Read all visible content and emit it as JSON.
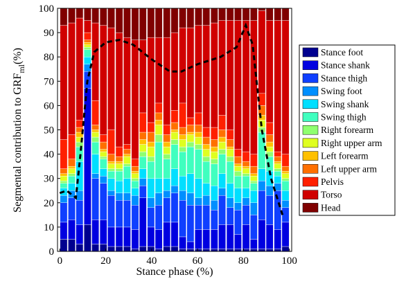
{
  "chart_data": {
    "type": "stacked-bar",
    "xlabel": "Stance phase (%)",
    "ylabel": {
      "text": "Segmental contribution to GRF",
      "subscript": "ml",
      "suffix": "(%)"
    },
    "x": [
      1.7,
      5.2,
      8.6,
      12.1,
      15.5,
      19,
      22.4,
      25.9,
      29.3,
      32.8,
      36.2,
      39.7,
      43.1,
      46.6,
      50,
      53.5,
      56.9,
      60.4,
      63.8,
      67.3,
      70.7,
      74.2,
      77.6,
      81.1,
      84.5,
      88,
      91.4,
      94.9,
      98.3
    ],
    "bar_width": 3.1,
    "xlim": [
      -1,
      101
    ],
    "xticks": [
      0,
      20,
      40,
      60,
      80,
      100
    ],
    "ylim": [
      0,
      100
    ],
    "yticks": [
      0,
      10,
      20,
      30,
      40,
      50,
      60,
      70,
      80,
      90,
      100
    ],
    "series": [
      {
        "name": "Stance foot",
        "color": "#00008f",
        "values": [
          5,
          5,
          3,
          11,
          3,
          3,
          2,
          2,
          2,
          1,
          2,
          2,
          1,
          2,
          2,
          1,
          1,
          1,
          1,
          1,
          1,
          1,
          1,
          1,
          1,
          1,
          1,
          1,
          2
        ]
      },
      {
        "name": "Stance shank",
        "color": "#0000e0",
        "values": [
          7,
          8,
          8,
          56,
          10,
          10,
          8,
          8,
          8,
          8,
          20,
          8,
          8,
          10,
          10,
          5,
          3,
          8,
          8,
          8,
          10,
          10,
          6,
          10,
          4,
          12,
          10,
          8,
          10
        ]
      },
      {
        "name": "Stance thigh",
        "color": "#0f3fff",
        "values": [
          8,
          9,
          10,
          7,
          17,
          15,
          13,
          11,
          11,
          10,
          5,
          8,
          10,
          10,
          12,
          15,
          15,
          10,
          10,
          8,
          12,
          7,
          10,
          8,
          10,
          12,
          12,
          16,
          6
        ]
      },
      {
        "name": "Swing foot",
        "color": "#008fff",
        "values": [
          3,
          3,
          4,
          3,
          2,
          3,
          2,
          3,
          3,
          4,
          3,
          4,
          5,
          3,
          3,
          4,
          5,
          3,
          4,
          4,
          3,
          4,
          3,
          3,
          5,
          4,
          4,
          3,
          3
        ]
      },
      {
        "name": "Swing shank",
        "color": "#00dfff",
        "values": [
          3,
          3,
          12,
          3,
          8,
          3,
          5,
          5,
          6,
          3,
          4,
          8,
          6,
          5,
          7,
          6,
          8,
          8,
          5,
          6,
          6,
          6,
          6,
          4,
          5,
          5,
          6,
          3,
          4
        ]
      },
      {
        "name": "Swing thigh",
        "color": "#40ffbf",
        "values": [
          2,
          3,
          6,
          3,
          5,
          4,
          3,
          4,
          5,
          3,
          5,
          7,
          15,
          8,
          10,
          10,
          11,
          12,
          9,
          9,
          8,
          9,
          5,
          5,
          3,
          15,
          6,
          2,
          4
        ]
      },
      {
        "name": "Right forearm",
        "color": "#8fff70",
        "values": [
          1,
          1,
          2,
          1,
          2,
          1,
          1,
          1,
          1,
          1,
          2,
          2,
          3,
          2,
          2,
          2,
          2,
          2,
          2,
          2,
          2,
          2,
          2,
          1,
          1,
          2,
          2,
          1,
          1
        ]
      },
      {
        "name": "Right upper arm",
        "color": "#dfff20",
        "values": [
          2,
          2,
          2,
          1,
          2,
          2,
          2,
          2,
          3,
          2,
          3,
          4,
          4,
          3,
          3,
          3,
          3,
          3,
          3,
          3,
          3,
          3,
          2,
          2,
          2,
          3,
          2,
          2,
          2
        ]
      },
      {
        "name": "Left forearm",
        "color": "#ffc000",
        "values": [
          1,
          1,
          2,
          1,
          1,
          1,
          1,
          1,
          1,
          1,
          2,
          2,
          2,
          2,
          1,
          2,
          1,
          2,
          2,
          2,
          2,
          1,
          1,
          1,
          1,
          2,
          2,
          1,
          1
        ]
      },
      {
        "name": "Left upper arm",
        "color": "#ff7000",
        "values": [
          2,
          3,
          2,
          1,
          2,
          3,
          3,
          2,
          2,
          2,
          3,
          4,
          3,
          3,
          3,
          3,
          3,
          3,
          3,
          3,
          3,
          3,
          3,
          2,
          3,
          4,
          3,
          2,
          2
        ]
      },
      {
        "name": "Pelvis",
        "color": "#ff2000",
        "values": [
          12,
          10,
          3,
          3,
          10,
          3,
          10,
          4,
          2,
          3,
          8,
          4,
          4,
          4,
          5,
          10,
          3,
          5,
          4,
          5,
          6,
          4,
          3,
          4,
          5,
          5,
          5,
          2,
          5
        ]
      },
      {
        "name": "Torso",
        "color": "#d00000",
        "values": [
          47,
          46,
          42,
          5,
          32,
          45,
          42,
          47,
          44,
          49,
          30,
          35,
          27,
          36,
          32,
          31,
          37,
          36,
          42,
          43,
          39,
          45,
          53,
          54,
          55,
          34,
          42,
          54,
          55
        ]
      },
      {
        "name": "Head",
        "color": "#800000",
        "values": [
          7,
          6,
          4,
          5,
          6,
          7,
          8,
          10,
          12,
          13,
          13,
          12,
          12,
          12,
          10,
          8,
          8,
          7,
          7,
          6,
          5,
          5,
          5,
          5,
          5,
          1,
          5,
          5,
          5
        ]
      }
    ],
    "line": {
      "color": "#000000",
      "x": [
        0,
        3,
        7,
        9,
        12,
        15,
        20,
        26,
        32,
        40,
        48,
        53,
        60,
        70,
        77,
        81,
        84,
        88,
        92,
        97
      ],
      "y": [
        24,
        25,
        22,
        40,
        70,
        82,
        86,
        87,
        85,
        79,
        74,
        74,
        77,
        80,
        84,
        93,
        85,
        50,
        30,
        15
      ]
    }
  }
}
